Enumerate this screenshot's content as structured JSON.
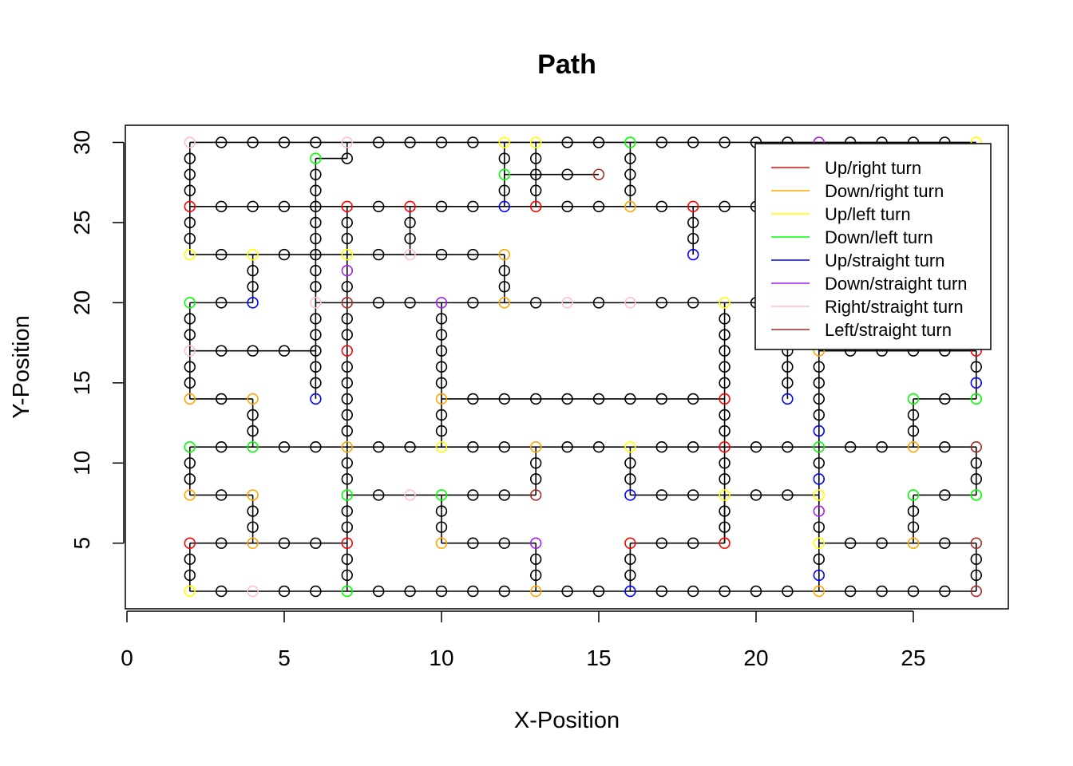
{
  "chart_data": {
    "type": "scatter",
    "title": "Path",
    "xlabel": "X-Position",
    "ylabel": "Y-Position",
    "xlim": [
      0,
      28
    ],
    "ylim": [
      2,
      30
    ],
    "x_ticks": [
      0,
      5,
      10,
      15,
      20,
      25
    ],
    "y_ticks": [
      5,
      10,
      15,
      20,
      25,
      30
    ],
    "grid": false,
    "legend_position": "top-right",
    "legend": [
      {
        "label": "Up/right turn",
        "color": "#ff0000"
      },
      {
        "label": "Down/right turn",
        "color": "#ffa500"
      },
      {
        "label": "Up/left turn",
        "color": "#ffff00"
      },
      {
        "label": "Down/left turn",
        "color": "#00ff00"
      },
      {
        "label": "Up/straight turn",
        "color": "#0000ff"
      },
      {
        "label": "Down/straight turn",
        "color": "#a020f0"
      },
      {
        "label": "Right/straight turn",
        "color": "#ffc0cb"
      },
      {
        "label": "Left/straight turn",
        "color": "#a52a2a"
      }
    ],
    "default_point_color": "#000000",
    "segments": [
      [
        2,
        30,
        27,
        30
      ],
      [
        2,
        30,
        2,
        23
      ],
      [
        2,
        26,
        16,
        26
      ],
      [
        16,
        26,
        16,
        30
      ],
      [
        2,
        23,
        12,
        23
      ],
      [
        12,
        23,
        12,
        20
      ],
      [
        9,
        26,
        9,
        23
      ],
      [
        4,
        23,
        4,
        20
      ],
      [
        2,
        20,
        4,
        20
      ],
      [
        2,
        20,
        2,
        14
      ],
      [
        2,
        17,
        6,
        17
      ],
      [
        6,
        14,
        6,
        29
      ],
      [
        6,
        29,
        7,
        29
      ],
      [
        7,
        30,
        7,
        29
      ],
      [
        6,
        20,
        27,
        20
      ],
      [
        7,
        26,
        7,
        2
      ],
      [
        12,
        30,
        12,
        26
      ],
      [
        12,
        28,
        15,
        28
      ],
      [
        13,
        30,
        13,
        26
      ],
      [
        18,
        26,
        18,
        23
      ],
      [
        16,
        26,
        27,
        26
      ],
      [
        10,
        20,
        10,
        11
      ],
      [
        10,
        14,
        19,
        14
      ],
      [
        19,
        20,
        19,
        5
      ],
      [
        16,
        8,
        22,
        8
      ],
      [
        2,
        14,
        4,
        14
      ],
      [
        4,
        14,
        4,
        11
      ],
      [
        2,
        11,
        27,
        11
      ],
      [
        2,
        11,
        2,
        8
      ],
      [
        2,
        8,
        4,
        8
      ],
      [
        4,
        8,
        4,
        5
      ],
      [
        2,
        5,
        7,
        5
      ],
      [
        2,
        5,
        2,
        2
      ],
      [
        2,
        2,
        27,
        2
      ],
      [
        7,
        8,
        13,
        8
      ],
      [
        13,
        11,
        13,
        8
      ],
      [
        10,
        8,
        10,
        5
      ],
      [
        10,
        5,
        13,
        5
      ],
      [
        13,
        5,
        13,
        2
      ],
      [
        16,
        11,
        16,
        8
      ],
      [
        16,
        5,
        19,
        5
      ],
      [
        16,
        5,
        16,
        2
      ],
      [
        19,
        8,
        19,
        5
      ],
      [
        21,
        20,
        21,
        14
      ],
      [
        22,
        20,
        22,
        2
      ],
      [
        22,
        17,
        27,
        17
      ],
      [
        27,
        17,
        27,
        14
      ],
      [
        25,
        14,
        27,
        14
      ],
      [
        25,
        14,
        25,
        11
      ],
      [
        27,
        11,
        27,
        8
      ],
      [
        25,
        8,
        27,
        8
      ],
      [
        25,
        8,
        25,
        5
      ],
      [
        22,
        5,
        27,
        5
      ],
      [
        27,
        5,
        27,
        2
      ]
    ],
    "extra_points": [
      [
        17,
        30
      ],
      [
        18,
        30
      ],
      [
        19,
        30
      ],
      [
        20,
        30
      ],
      [
        21,
        30
      ],
      [
        22,
        30
      ]
    ],
    "special_points": [
      {
        "x": 2,
        "y": 30,
        "type": "Right/straight turn"
      },
      {
        "x": 7,
        "y": 30,
        "type": "Right/straight turn"
      },
      {
        "x": 12,
        "y": 30,
        "type": "Up/left turn"
      },
      {
        "x": 13,
        "y": 30,
        "type": "Up/left turn"
      },
      {
        "x": 16,
        "y": 30,
        "type": "Down/left turn"
      },
      {
        "x": 22,
        "y": 30,
        "type": "Down/straight turn"
      },
      {
        "x": 27,
        "y": 30,
        "type": "Up/left turn"
      },
      {
        "x": 6,
        "y": 29,
        "type": "Down/left turn"
      },
      {
        "x": 12,
        "y": 28,
        "type": "Down/left turn"
      },
      {
        "x": 15,
        "y": 28,
        "type": "Left/straight turn"
      },
      {
        "x": 7,
        "y": 26,
        "type": "Up/right turn"
      },
      {
        "x": 9,
        "y": 26,
        "type": "Up/right turn"
      },
      {
        "x": 12,
        "y": 26,
        "type": "Up/straight turn"
      },
      {
        "x": 13,
        "y": 26,
        "type": "Up/right turn"
      },
      {
        "x": 16,
        "y": 26,
        "type": "Down/right turn"
      },
      {
        "x": 18,
        "y": 26,
        "type": "Up/right turn"
      },
      {
        "x": 2,
        "y": 26,
        "type": "Up/right turn"
      },
      {
        "x": 2,
        "y": 23,
        "type": "Up/left turn"
      },
      {
        "x": 4,
        "y": 23,
        "type": "Up/left turn"
      },
      {
        "x": 7,
        "y": 23,
        "type": "Up/left turn"
      },
      {
        "x": 9,
        "y": 23,
        "type": "Right/straight turn"
      },
      {
        "x": 12,
        "y": 23,
        "type": "Down/right turn"
      },
      {
        "x": 18,
        "y": 23,
        "type": "Up/straight turn"
      },
      {
        "x": 7,
        "y": 22,
        "type": "Down/straight turn"
      },
      {
        "x": 2,
        "y": 20,
        "type": "Down/left turn"
      },
      {
        "x": 4,
        "y": 20,
        "type": "Up/straight turn"
      },
      {
        "x": 6,
        "y": 20,
        "type": "Right/straight turn"
      },
      {
        "x": 7,
        "y": 20,
        "type": "Left/straight turn"
      },
      {
        "x": 10,
        "y": 20,
        "type": "Down/straight turn"
      },
      {
        "x": 12,
        "y": 20,
        "type": "Down/right turn"
      },
      {
        "x": 14,
        "y": 20,
        "type": "Right/straight turn"
      },
      {
        "x": 16,
        "y": 20,
        "type": "Right/straight turn"
      },
      {
        "x": 19,
        "y": 20,
        "type": "Up/left turn"
      },
      {
        "x": 2,
        "y": 17,
        "type": "Right/straight turn"
      },
      {
        "x": 7,
        "y": 17,
        "type": "Up/right turn"
      },
      {
        "x": 22,
        "y": 17,
        "type": "Down/right turn"
      },
      {
        "x": 27,
        "y": 17,
        "type": "Up/right turn"
      },
      {
        "x": 27,
        "y": 15,
        "type": "Up/straight turn"
      },
      {
        "x": 6,
        "y": 14,
        "type": "Up/straight turn"
      },
      {
        "x": 2,
        "y": 14,
        "type": "Down/right turn"
      },
      {
        "x": 4,
        "y": 14,
        "type": "Down/right turn"
      },
      {
        "x": 10,
        "y": 14,
        "type": "Down/right turn"
      },
      {
        "x": 19,
        "y": 14,
        "type": "Up/right turn"
      },
      {
        "x": 21,
        "y": 14,
        "type": "Up/straight turn"
      },
      {
        "x": 25,
        "y": 14,
        "type": "Down/left turn"
      },
      {
        "x": 27,
        "y": 14,
        "type": "Down/left turn"
      },
      {
        "x": 22,
        "y": 12,
        "type": "Up/straight turn"
      },
      {
        "x": 2,
        "y": 11,
        "type": "Down/left turn"
      },
      {
        "x": 4,
        "y": 11,
        "type": "Down/left turn"
      },
      {
        "x": 7,
        "y": 11,
        "type": "Down/right turn"
      },
      {
        "x": 10,
        "y": 11,
        "type": "Up/left turn"
      },
      {
        "x": 13,
        "y": 11,
        "type": "Down/right turn"
      },
      {
        "x": 16,
        "y": 11,
        "type": "Up/left turn"
      },
      {
        "x": 19,
        "y": 11,
        "type": "Up/right turn"
      },
      {
        "x": 22,
        "y": 11,
        "type": "Down/left turn"
      },
      {
        "x": 25,
        "y": 11,
        "type": "Down/right turn"
      },
      {
        "x": 27,
        "y": 11,
        "type": "Left/straight turn"
      },
      {
        "x": 22,
        "y": 9,
        "type": "Up/straight turn"
      },
      {
        "x": 2,
        "y": 8,
        "type": "Down/right turn"
      },
      {
        "x": 4,
        "y": 8,
        "type": "Down/right turn"
      },
      {
        "x": 7,
        "y": 8,
        "type": "Down/left turn"
      },
      {
        "x": 9,
        "y": 8,
        "type": "Right/straight turn"
      },
      {
        "x": 10,
        "y": 8,
        "type": "Down/left turn"
      },
      {
        "x": 13,
        "y": 8,
        "type": "Left/straight turn"
      },
      {
        "x": 16,
        "y": 8,
        "type": "Up/straight turn"
      },
      {
        "x": 19,
        "y": 8,
        "type": "Up/left turn"
      },
      {
        "x": 22,
        "y": 8,
        "type": "Up/left turn"
      },
      {
        "x": 25,
        "y": 8,
        "type": "Down/left turn"
      },
      {
        "x": 27,
        "y": 8,
        "type": "Down/left turn"
      },
      {
        "x": 22,
        "y": 7,
        "type": "Down/straight turn"
      },
      {
        "x": 2,
        "y": 5,
        "type": "Up/right turn"
      },
      {
        "x": 4,
        "y": 5,
        "type": "Down/right turn"
      },
      {
        "x": 7,
        "y": 5,
        "type": "Up/right turn"
      },
      {
        "x": 10,
        "y": 5,
        "type": "Down/right turn"
      },
      {
        "x": 13,
        "y": 5,
        "type": "Down/straight turn"
      },
      {
        "x": 16,
        "y": 5,
        "type": "Up/right turn"
      },
      {
        "x": 19,
        "y": 5,
        "type": "Up/right turn"
      },
      {
        "x": 22,
        "y": 5,
        "type": "Up/left turn"
      },
      {
        "x": 25,
        "y": 5,
        "type": "Down/right turn"
      },
      {
        "x": 27,
        "y": 5,
        "type": "Left/straight turn"
      },
      {
        "x": 22,
        "y": 3,
        "type": "Up/straight turn"
      },
      {
        "x": 2,
        "y": 2,
        "type": "Up/left turn"
      },
      {
        "x": 4,
        "y": 2,
        "type": "Right/straight turn"
      },
      {
        "x": 7,
        "y": 2,
        "type": "Down/left turn"
      },
      {
        "x": 13,
        "y": 2,
        "type": "Down/right turn"
      },
      {
        "x": 16,
        "y": 2,
        "type": "Up/straight turn"
      },
      {
        "x": 22,
        "y": 2,
        "type": "Down/right turn"
      },
      {
        "x": 27,
        "y": 2,
        "type": "Left/straight turn"
      }
    ]
  }
}
